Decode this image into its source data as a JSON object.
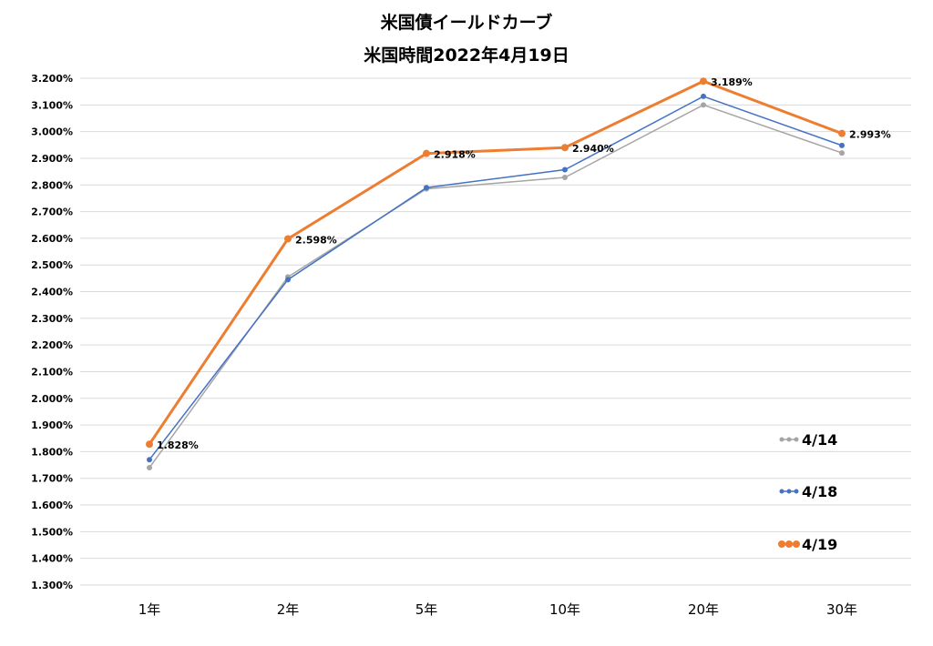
{
  "chart_data": {
    "type": "line",
    "title": "米国債イールドカーブ",
    "subtitle": "米国時間2022年4月19日",
    "categories": [
      "1年",
      "2年",
      "5年",
      "10年",
      "20年",
      "30年"
    ],
    "ylim": [
      1.3,
      3.2
    ],
    "ytick_step": 0.1,
    "ytick_format": "percent_3dp",
    "grid": true,
    "legend_position": "right",
    "series": [
      {
        "name": "4/14",
        "color": "#a5a5a5",
        "values": [
          1.74,
          2.455,
          2.785,
          2.828,
          3.1,
          2.92
        ],
        "labels": null
      },
      {
        "name": "4/18",
        "color": "#4472c4",
        "values": [
          1.77,
          2.445,
          2.79,
          2.857,
          3.132,
          2.948
        ],
        "labels": null
      },
      {
        "name": "4/19",
        "color": "#ed7d31",
        "values": [
          1.828,
          2.598,
          2.918,
          2.94,
          3.189,
          2.993
        ],
        "labels": [
          "1.828%",
          "2.598%",
          "2.918%",
          "2.940%",
          "3.189%",
          "2.993%"
        ]
      }
    ]
  }
}
